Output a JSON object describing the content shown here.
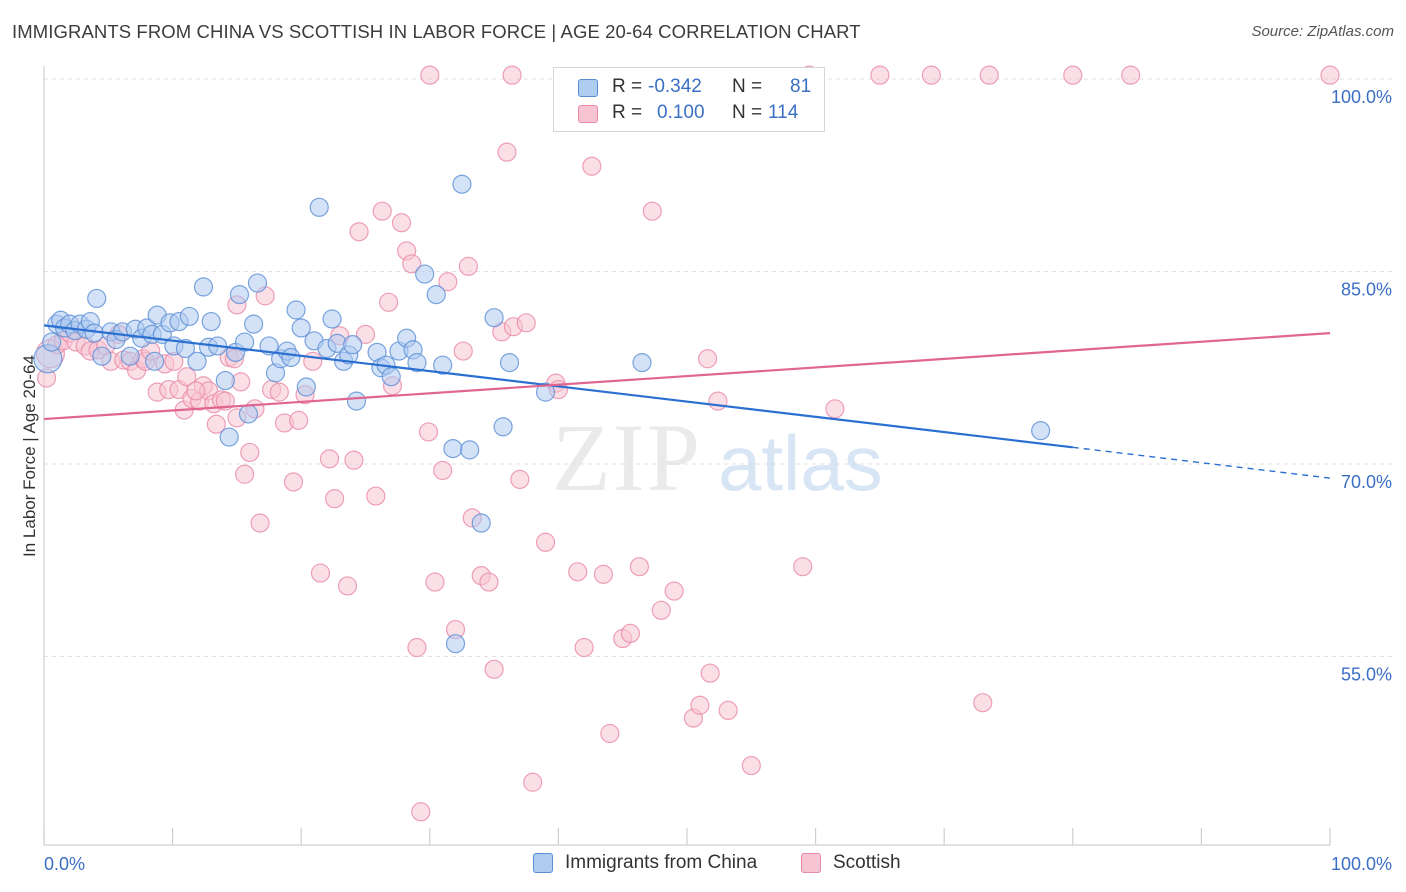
{
  "title": "IMMIGRANTS FROM CHINA VS SCOTTISH IN LABOR FORCE | AGE 20-64 CORRELATION CHART",
  "source": "Source: ZipAtlas.com",
  "watermark": {
    "zip": "ZIP",
    "atlas": "atlas"
  },
  "colors": {
    "blue_fill": "#aecbf0",
    "blue_stroke": "#5b8fd6",
    "blue_line": "#2b6fd1",
    "pink_fill": "#f7c4d3",
    "pink_stroke": "#e88aa6",
    "pink_line": "#e0668f",
    "grid": "#e2e2e2",
    "axis_text": "#3b6fc4"
  },
  "legend": {
    "rows": [
      {
        "r_label": "R =",
        "r_value": "-0.342",
        "n_label": "N =",
        "n_value": "81"
      },
      {
        "r_label": "R =",
        "r_value": "0.100",
        "n_label": "N =",
        "n_value": "114"
      }
    ]
  },
  "bottom_legend": [
    "Immigrants from China",
    "Scottish"
  ],
  "chart_data": {
    "type": "scatter",
    "title": "IMMIGRANTS FROM CHINA VS SCOTTISH IN LABOR FORCE | AGE 20-64 CORRELATION CHART",
    "ylabel": "In Labor Force | Age 20-64",
    "xlabel": "",
    "xlim": [
      0,
      100
    ],
    "ylim": [
      40,
      101
    ],
    "x_tick_labels": [
      "0.0%",
      "100.0%"
    ],
    "y_ticks": [
      55,
      70,
      85,
      100
    ],
    "y_tick_labels": [
      "55.0%",
      "70.0%",
      "85.0%",
      "100.0%"
    ],
    "grid": true,
    "series": [
      {
        "name": "Immigrants from China",
        "r": -0.342,
        "n": 81,
        "trend": {
          "x": [
            0,
            80,
            100
          ],
          "y": [
            80.8,
            71.3,
            68.9
          ],
          "solid_until_x": 80
        },
        "points": [
          [
            0.3,
            78.2
          ],
          [
            0.6,
            79.5
          ],
          [
            1.0,
            80.9
          ],
          [
            1.3,
            81.2
          ],
          [
            1.6,
            80.6
          ],
          [
            2.0,
            80.9
          ],
          [
            2.4,
            80.4
          ],
          [
            2.8,
            80.9
          ],
          [
            3.3,
            80.5
          ],
          [
            3.6,
            81.1
          ],
          [
            3.9,
            80.2
          ],
          [
            4.1,
            82.9
          ],
          [
            4.5,
            78.4
          ],
          [
            5.2,
            80.3
          ],
          [
            5.6,
            79.7
          ],
          [
            6.1,
            80.3
          ],
          [
            6.7,
            78.4
          ],
          [
            7.1,
            80.5
          ],
          [
            7.6,
            79.8
          ],
          [
            8.0,
            80.6
          ],
          [
            8.4,
            80.1
          ],
          [
            8.8,
            81.6
          ],
          [
            9.2,
            80.1
          ],
          [
            9.8,
            81.0
          ],
          [
            10.1,
            79.2
          ],
          [
            10.5,
            81.1
          ],
          [
            11.0,
            79.0
          ],
          [
            11.3,
            81.5
          ],
          [
            11.9,
            78.0
          ],
          [
            12.4,
            83.8
          ],
          [
            12.8,
            79.1
          ],
          [
            13.0,
            81.1
          ],
          [
            13.5,
            79.2
          ],
          [
            14.1,
            76.5
          ],
          [
            14.4,
            72.1
          ],
          [
            14.9,
            78.7
          ],
          [
            15.2,
            83.2
          ],
          [
            15.6,
            79.5
          ],
          [
            15.9,
            73.9
          ],
          [
            16.3,
            80.9
          ],
          [
            16.6,
            84.1
          ],
          [
            17.5,
            79.2
          ],
          [
            18.0,
            77.1
          ],
          [
            18.4,
            78.2
          ],
          [
            18.9,
            78.8
          ],
          [
            19.2,
            78.3
          ],
          [
            19.6,
            82.0
          ],
          [
            20.0,
            80.6
          ],
          [
            20.4,
            76.0
          ],
          [
            21.0,
            79.6
          ],
          [
            21.4,
            90.0
          ],
          [
            22.0,
            79.0
          ],
          [
            22.4,
            81.3
          ],
          [
            22.8,
            79.4
          ],
          [
            23.3,
            78.0
          ],
          [
            23.7,
            78.5
          ],
          [
            24.3,
            74.9
          ],
          [
            25.9,
            78.7
          ],
          [
            26.2,
            77.5
          ],
          [
            26.6,
            77.7
          ],
          [
            27.0,
            76.8
          ],
          [
            27.6,
            78.8
          ],
          [
            28.2,
            79.8
          ],
          [
            28.7,
            78.9
          ],
          [
            29.0,
            77.9
          ],
          [
            29.6,
            84.8
          ],
          [
            30.5,
            83.2
          ],
          [
            31.0,
            77.7
          ],
          [
            31.8,
            71.2
          ],
          [
            32.5,
            91.8
          ],
          [
            33.1,
            71.1
          ],
          [
            34.0,
            65.4
          ],
          [
            35.0,
            81.4
          ],
          [
            35.7,
            72.9
          ],
          [
            36.2,
            77.9
          ],
          [
            39.0,
            75.6
          ],
          [
            46.5,
            77.9
          ],
          [
            77.5,
            72.6
          ],
          [
            32.0,
            56.0
          ],
          [
            24.0,
            79.3
          ],
          [
            8.6,
            78.0
          ]
        ]
      },
      {
        "name": "Scottish",
        "r": 0.1,
        "n": 114,
        "trend": {
          "x": [
            0,
            100
          ],
          "y": [
            73.5,
            80.2
          ]
        },
        "points": [
          [
            0.2,
            76.7
          ],
          [
            0.5,
            78.6
          ],
          [
            1.0,
            79.3
          ],
          [
            1.5,
            79.6
          ],
          [
            2.0,
            80.2
          ],
          [
            2.5,
            79.5
          ],
          [
            3.2,
            79.2
          ],
          [
            3.6,
            78.8
          ],
          [
            4.2,
            78.9
          ],
          [
            4.8,
            79.2
          ],
          [
            5.2,
            78.0
          ],
          [
            5.8,
            80.1
          ],
          [
            6.2,
            78.1
          ],
          [
            6.7,
            78.0
          ],
          [
            7.2,
            77.3
          ],
          [
            7.7,
            78.2
          ],
          [
            7.9,
            78.0
          ],
          [
            8.3,
            78.8
          ],
          [
            8.8,
            75.6
          ],
          [
            9.4,
            77.8
          ],
          [
            9.7,
            75.8
          ],
          [
            10.1,
            78.0
          ],
          [
            10.5,
            75.8
          ],
          [
            10.9,
            74.2
          ],
          [
            11.1,
            76.8
          ],
          [
            11.5,
            75.1
          ],
          [
            12.1,
            74.9
          ],
          [
            12.4,
            76.1
          ],
          [
            12.8,
            75.7
          ],
          [
            13.2,
            74.7
          ],
          [
            13.4,
            73.1
          ],
          [
            13.8,
            75.0
          ],
          [
            14.1,
            74.9
          ],
          [
            14.4,
            78.3
          ],
          [
            14.8,
            78.2
          ],
          [
            15.0,
            82.4
          ],
          [
            15.3,
            76.4
          ],
          [
            15.6,
            69.2
          ],
          [
            16.0,
            70.9
          ],
          [
            16.4,
            74.3
          ],
          [
            16.8,
            65.4
          ],
          [
            17.2,
            83.1
          ],
          [
            17.7,
            75.8
          ],
          [
            18.3,
            75.6
          ],
          [
            18.7,
            73.2
          ],
          [
            19.4,
            68.6
          ],
          [
            19.8,
            73.4
          ],
          [
            20.3,
            75.4
          ],
          [
            20.9,
            78.0
          ],
          [
            21.5,
            61.5
          ],
          [
            22.2,
            70.4
          ],
          [
            22.6,
            67.3
          ],
          [
            23.0,
            80.0
          ],
          [
            23.6,
            60.5
          ],
          [
            24.1,
            70.3
          ],
          [
            24.5,
            88.1
          ],
          [
            25.0,
            80.1
          ],
          [
            25.8,
            67.5
          ],
          [
            26.3,
            89.7
          ],
          [
            26.8,
            82.6
          ],
          [
            27.1,
            76.1
          ],
          [
            27.8,
            88.8
          ],
          [
            28.2,
            86.6
          ],
          [
            28.6,
            85.6
          ],
          [
            29.0,
            55.7
          ],
          [
            29.3,
            42.9
          ],
          [
            29.9,
            72.5
          ],
          [
            30.4,
            60.8
          ],
          [
            31.0,
            69.5
          ],
          [
            31.4,
            84.2
          ],
          [
            32.0,
            57.1
          ],
          [
            32.6,
            78.8
          ],
          [
            33.0,
            85.4
          ],
          [
            33.3,
            65.8
          ],
          [
            34.0,
            61.3
          ],
          [
            34.6,
            60.8
          ],
          [
            35.0,
            54.0
          ],
          [
            35.6,
            80.3
          ],
          [
            36.0,
            94.3
          ],
          [
            36.5,
            80.7
          ],
          [
            37.0,
            68.8
          ],
          [
            37.5,
            81.0
          ],
          [
            38.0,
            45.2
          ],
          [
            39.0,
            63.9
          ],
          [
            39.8,
            76.3
          ],
          [
            40.0,
            75.8
          ],
          [
            41.5,
            61.6
          ],
          [
            42.0,
            55.7
          ],
          [
            42.6,
            93.2
          ],
          [
            43.5,
            61.4
          ],
          [
            44.0,
            49.0
          ],
          [
            45.0,
            56.4
          ],
          [
            45.6,
            56.8
          ],
          [
            46.3,
            62.0
          ],
          [
            47.3,
            89.7
          ],
          [
            48.0,
            58.6
          ],
          [
            49.0,
            60.1
          ],
          [
            50.5,
            50.2
          ],
          [
            51.0,
            51.2
          ],
          [
            51.6,
            78.2
          ],
          [
            51.8,
            53.7
          ],
          [
            52.4,
            74.9
          ],
          [
            53.2,
            50.8
          ],
          [
            55.0,
            46.5
          ],
          [
            59.0,
            62.0
          ],
          [
            61.5,
            74.3
          ],
          [
            73.0,
            51.4
          ],
          [
            30.0,
            100.3
          ],
          [
            36.4,
            100.3
          ],
          [
            59.5,
            100.3
          ],
          [
            65.0,
            100.3
          ],
          [
            69.0,
            100.3
          ],
          [
            73.5,
            100.3
          ],
          [
            80.0,
            100.3
          ],
          [
            84.5,
            100.3
          ],
          [
            100.0,
            100.3
          ],
          [
            15.0,
            73.6
          ],
          [
            11.8,
            75.7
          ]
        ]
      }
    ]
  }
}
